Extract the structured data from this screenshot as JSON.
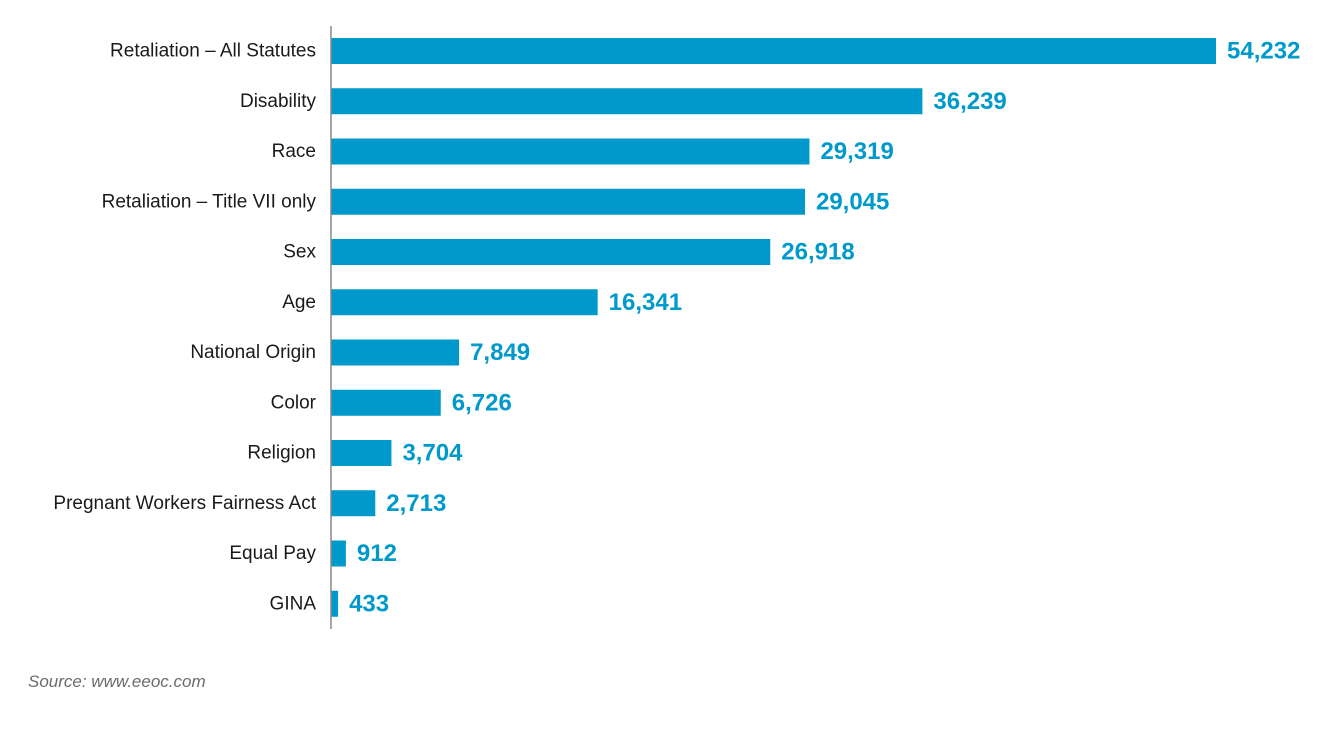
{
  "chart_data": {
    "type": "bar",
    "orientation": "horizontal",
    "categories": [
      "Retaliation – All Statutes",
      "Disability",
      "Race",
      "Retaliation – Title VII only",
      "Sex",
      "Age",
      "National Origin",
      "Color",
      "Religion",
      "Pregnant Workers Fairness Act",
      "Equal Pay",
      "GINA"
    ],
    "values": [
      54232,
      36239,
      29319,
      29045,
      26918,
      16341,
      7849,
      6726,
      3704,
      2713,
      912,
      433
    ],
    "value_labels": [
      "54,232",
      "36,239",
      "29,319",
      "29,045",
      "26,918",
      "16,341",
      "7,849",
      "6,726",
      "3,704",
      "2,713",
      "912",
      "433"
    ],
    "xlim": [
      0,
      54232
    ],
    "grid": false,
    "legend": "none",
    "colors": {
      "bar": "#0099cc",
      "value_label": "#0099cc",
      "axis": "#888888",
      "category_label": "#1a1a1a"
    }
  },
  "source": "Source: www.eeoc.com"
}
